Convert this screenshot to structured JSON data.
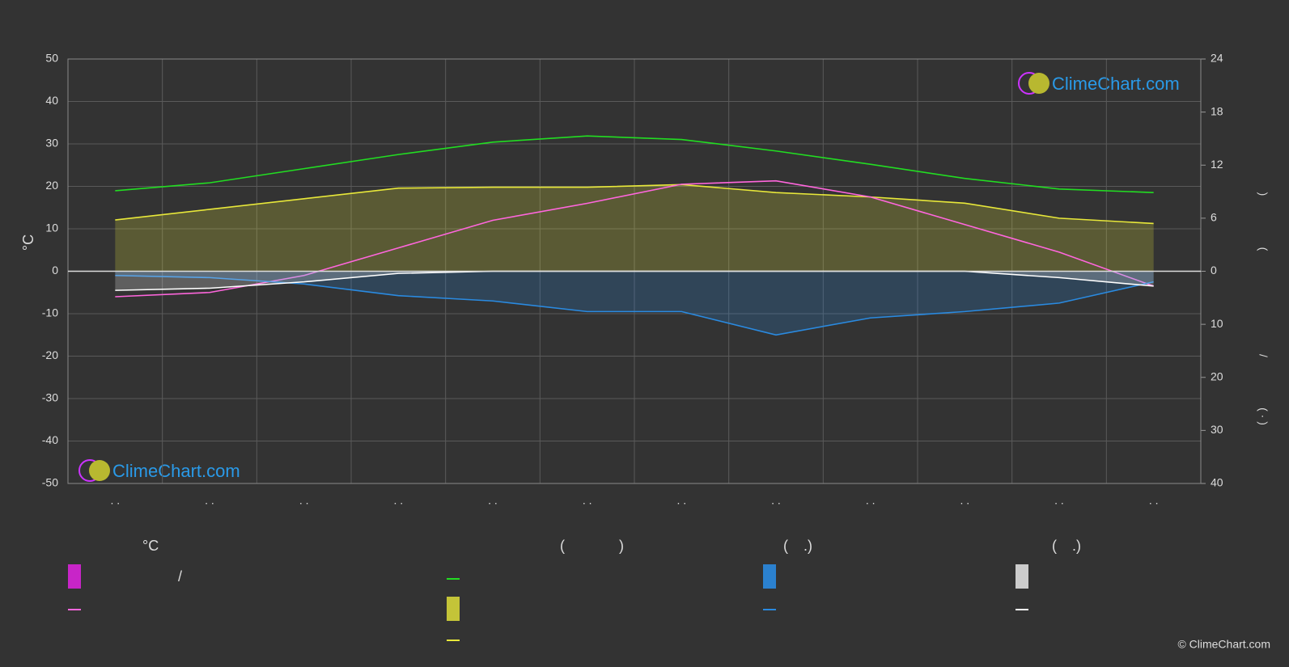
{
  "chart_data": {
    "type": "line",
    "categories": [
      ". .",
      ". .",
      ". .",
      ". .",
      ". .",
      ". .",
      ". .",
      ". .",
      ". .",
      ". .",
      ". .",
      ". ."
    ],
    "ylim": [
      -50,
      50
    ],
    "yticks": [
      -50,
      -40,
      -30,
      -20,
      -10,
      0,
      10,
      20,
      30,
      40,
      50
    ],
    "ylabel": "°C",
    "hours_axis": {
      "lim": [
        0,
        24
      ],
      "ticks": [
        0,
        6,
        12,
        18,
        24
      ]
    },
    "precip_axis": {
      "lim": [
        0,
        40
      ],
      "ticks": [
        10,
        20,
        30,
        40
      ]
    },
    "right_label_parts": [
      ")",
      "(",
      "/",
      "( · )"
    ],
    "grid": true,
    "series": [
      {
        "color": "#22dd22",
        "axis": "hours",
        "area": false,
        "values": [
          9.1,
          10.0,
          11.6,
          13.2,
          14.6,
          15.3,
          14.9,
          13.6,
          12.1,
          10.5,
          9.3,
          8.9
        ]
      },
      {
        "color": "#e8e83a",
        "axis": "hours",
        "area": true,
        "values": [
          5.8,
          7.0,
          8.2,
          9.4,
          9.5,
          9.5,
          9.8,
          8.9,
          8.4,
          7.7,
          6.0,
          5.4
        ]
      },
      {
        "color": "#ff66dd",
        "axis": "y",
        "area": false,
        "values": [
          -6,
          -5,
          -1,
          5.5,
          12,
          16,
          20.5,
          21.3,
          17.5,
          11,
          4.5,
          -3.5
        ]
      },
      {
        "color": "#2a8ae0",
        "axis": "precip",
        "area": true,
        "values": [
          0.8,
          1.2,
          2.4,
          4.6,
          5.6,
          7.6,
          7.6,
          12,
          8.8,
          7.6,
          6,
          2
        ]
      },
      {
        "color": "#ffffff",
        "axis": "precip",
        "area": true,
        "values": [
          3.6,
          3.2,
          2.0,
          0.4,
          0,
          0,
          0,
          0,
          0,
          0,
          1.2,
          2.8
        ]
      }
    ],
    "legend_parts": [
      "°C",
      "(",
      ")",
      "(",
      ".)",
      "(",
      ".)",
      "/"
    ],
    "logo": "ClimeChart.com",
    "copyright": "© ClimeChart.com"
  }
}
